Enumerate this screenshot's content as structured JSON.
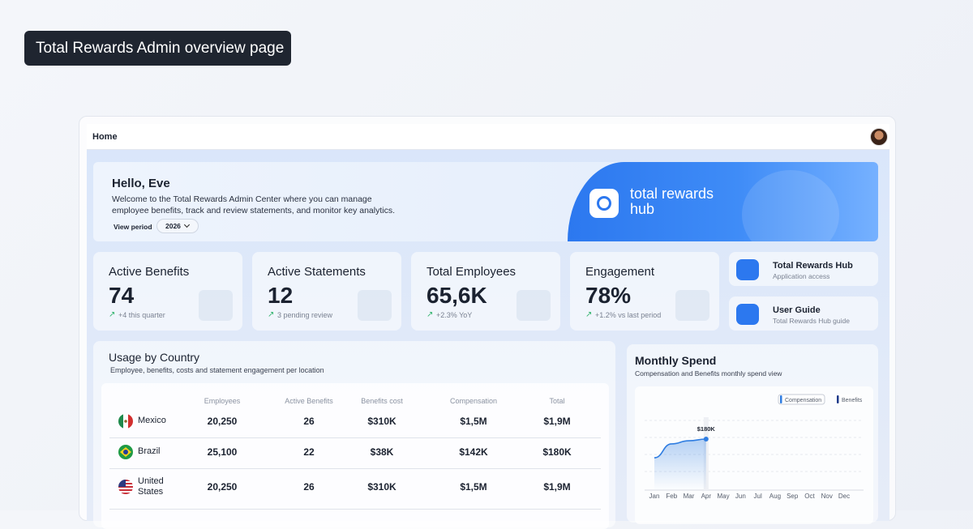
{
  "page_label": "Total Rewards Admin overview page",
  "topbar": {
    "title": "Home"
  },
  "hero": {
    "greeting": "Hello, Eve",
    "message": "Welcome to the Total Rewards Admin Center where you can manage employee benefits, track and review statements, and monitor key analytics.",
    "period_label": "View period",
    "period_value": "2026",
    "brand_lines": [
      "total rewards",
      "hub"
    ]
  },
  "stats": [
    {
      "title": "Active Benefits",
      "value": "74",
      "note": "+4 this quarter"
    },
    {
      "title": "Active Statements",
      "value": "12",
      "note": "3 pending review"
    },
    {
      "title": "Total Employees",
      "value": "65,6K",
      "note": "+2.3% YoY"
    },
    {
      "title": "Engagement",
      "value": "78%",
      "note": "+1.2% vs last period"
    }
  ],
  "links": [
    {
      "title": "Total Rewards Hub",
      "subtitle": "Application access"
    },
    {
      "title": "User Guide",
      "subtitle": "Total Rewards Hub guide"
    }
  ],
  "usage": {
    "title": "Usage by Country",
    "subtitle": "Employee, benefits, costs and statement engagement per location",
    "columns": [
      "Employees",
      "Active Benefits",
      "Benefits cost",
      "Compensation",
      "Total"
    ],
    "rows": [
      {
        "country": "Mexico",
        "cells": [
          "20,250",
          "26",
          "$310K",
          "$1,5M",
          "$1,9M"
        ]
      },
      {
        "country": "Brazil",
        "cells": [
          "25,100",
          "22",
          "$38K",
          "$142K",
          "$180K"
        ]
      },
      {
        "country": "United States",
        "cells": [
          "20,250",
          "26",
          "$310K",
          "$1,5M",
          "$1,9M"
        ]
      }
    ]
  },
  "chart_data": {
    "type": "line",
    "title": "Monthly Spend",
    "subtitle": "Compensation and Benefits monthly spend view",
    "categories": [
      "Jan",
      "Feb",
      "Mar",
      "Apr",
      "May",
      "Jun",
      "Jul",
      "Aug",
      "Sep",
      "Oct",
      "Nov",
      "Dec"
    ],
    "series": [
      {
        "name": "Compensation",
        "color": "#2f7de1",
        "values": [
          114,
          163,
          174,
          180,
          null,
          null,
          null,
          null,
          null,
          null,
          null,
          null
        ],
        "value_labels": [
          null,
          null,
          null,
          "$180K",
          null,
          null,
          null,
          null,
          null,
          null,
          null,
          null
        ]
      },
      {
        "name": "Benefits",
        "color": "#1e3a8a",
        "values": [
          null,
          null,
          null,
          null,
          null,
          null,
          null,
          null,
          null,
          null,
          null,
          null
        ]
      }
    ],
    "ylim": [
      0,
      300
    ],
    "grid": true
  }
}
